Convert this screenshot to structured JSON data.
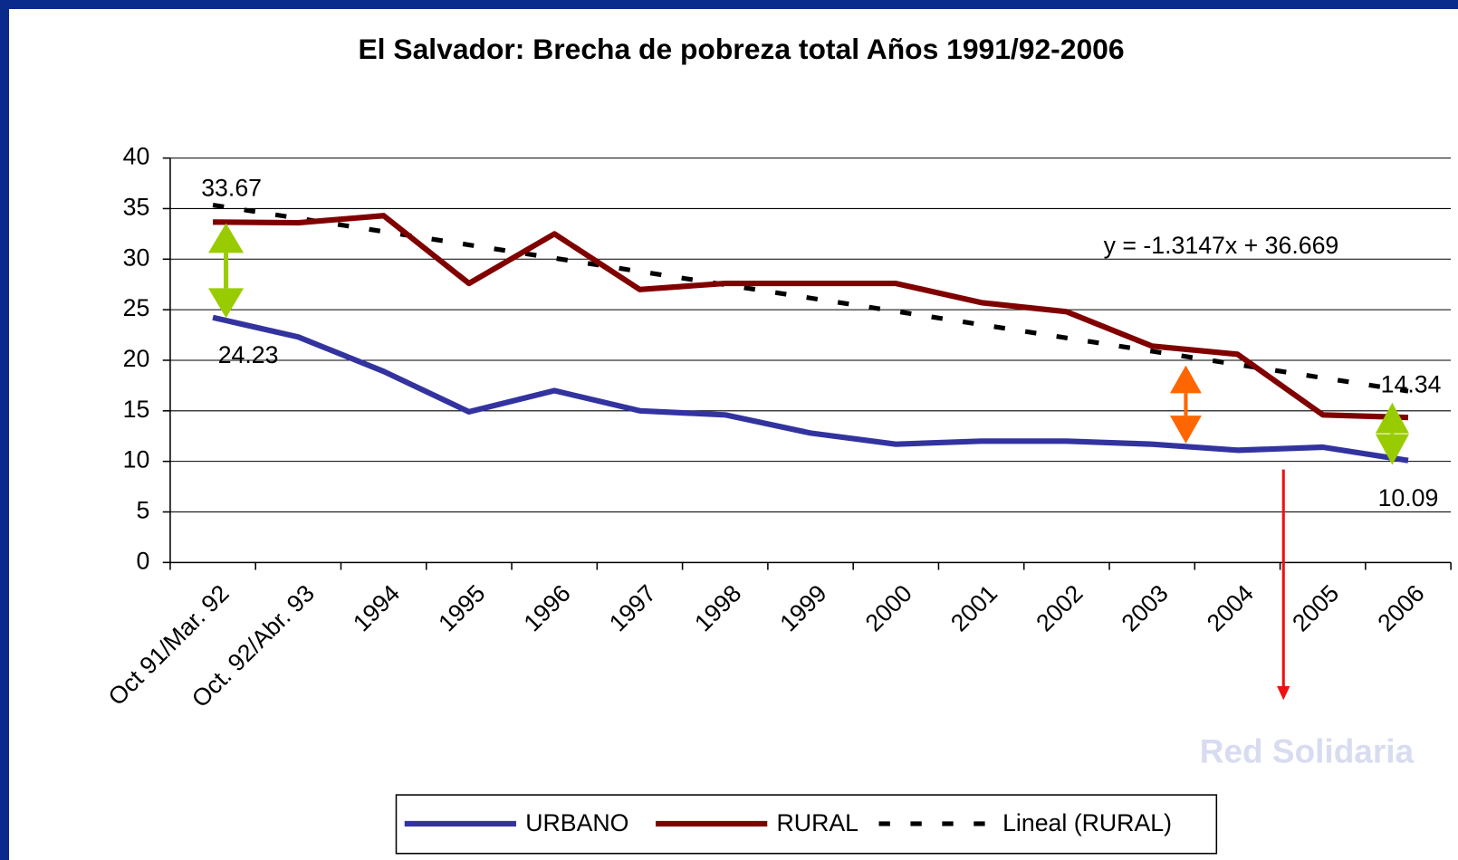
{
  "chart_data": {
    "type": "line",
    "title": "El Salvador: Brecha de pobreza total Años 1991/92-2006",
    "categories": [
      "Oct 91/Mar. 92",
      "Oct. 92/Abr. 93",
      "1994",
      "1995",
      "1996",
      "1997",
      "1998",
      "1999",
      "2000",
      "2001",
      "2002",
      "2003",
      "2004",
      "2005",
      "2006"
    ],
    "series": [
      {
        "name": "URBANO",
        "color": "#3333a0",
        "values": [
          24.23,
          22.3,
          18.9,
          14.9,
          17.0,
          15.0,
          14.6,
          12.8,
          11.7,
          12.0,
          12.0,
          11.7,
          11.1,
          11.4,
          10.09
        ]
      },
      {
        "name": "RURAL",
        "color": "#800000",
        "values": [
          33.67,
          33.6,
          34.3,
          27.6,
          32.5,
          27.0,
          27.6,
          27.6,
          27.6,
          25.7,
          24.8,
          21.4,
          20.6,
          14.6,
          14.34
        ]
      },
      {
        "name": "Lineal (RURAL)",
        "color": "#000000",
        "dashed": true,
        "values": [
          35.35,
          34.04,
          32.73,
          31.41,
          30.1,
          28.78,
          27.47,
          26.15,
          24.84,
          23.52,
          22.21,
          20.89,
          19.58,
          18.26,
          16.95
        ]
      }
    ],
    "annotations": [
      "y = -1.3147x + 36.669",
      "Red Solidaria"
    ],
    "ylim": [
      0,
      40
    ],
    "yticks": [
      0,
      5,
      10,
      15,
      20,
      25,
      30,
      35,
      40
    ],
    "grid": true,
    "legend": "bottom"
  }
}
